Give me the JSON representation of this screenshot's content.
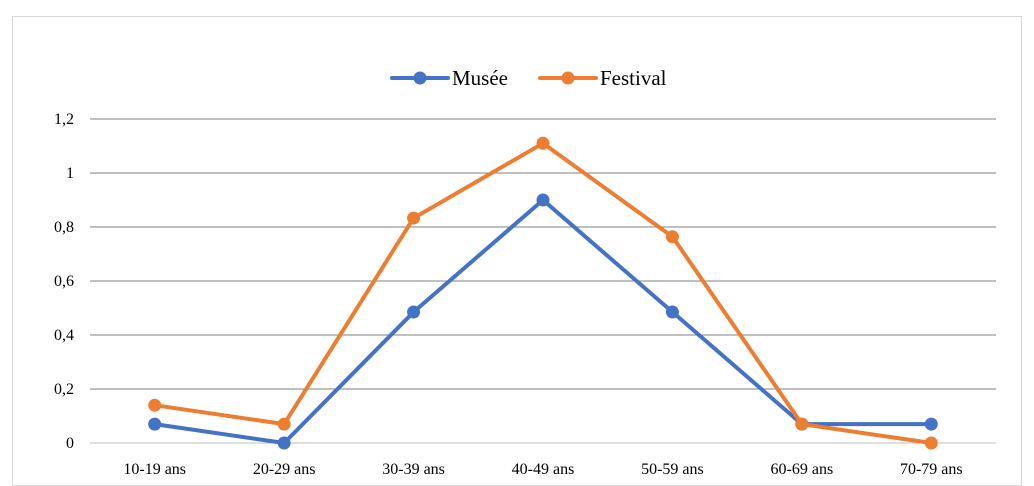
{
  "chart_data": {
    "type": "line",
    "title": "",
    "xlabel": "",
    "ylabel": "",
    "categories": [
      "10-19 ans",
      "20-29 ans",
      "30-39 ans",
      "40-49 ans",
      "50-59 ans",
      "60-69 ans",
      "70-79 ans"
    ],
    "ylim": [
      0,
      1.2
    ],
    "yticks": [
      "0",
      "0,2",
      "0,4",
      "0,6",
      "0,8",
      "1",
      "1,2"
    ],
    "grid": true,
    "legend_position": "top",
    "series": [
      {
        "name": "Musée",
        "color": "#4472C4",
        "values": [
          0.07,
          0.0,
          0.485,
          0.9,
          0.485,
          0.07,
          0.07
        ]
      },
      {
        "name": "Festival",
        "color": "#ED7D31",
        "values": [
          0.14,
          0.07,
          0.833,
          1.11,
          0.764,
          0.07,
          0.0
        ]
      }
    ]
  }
}
